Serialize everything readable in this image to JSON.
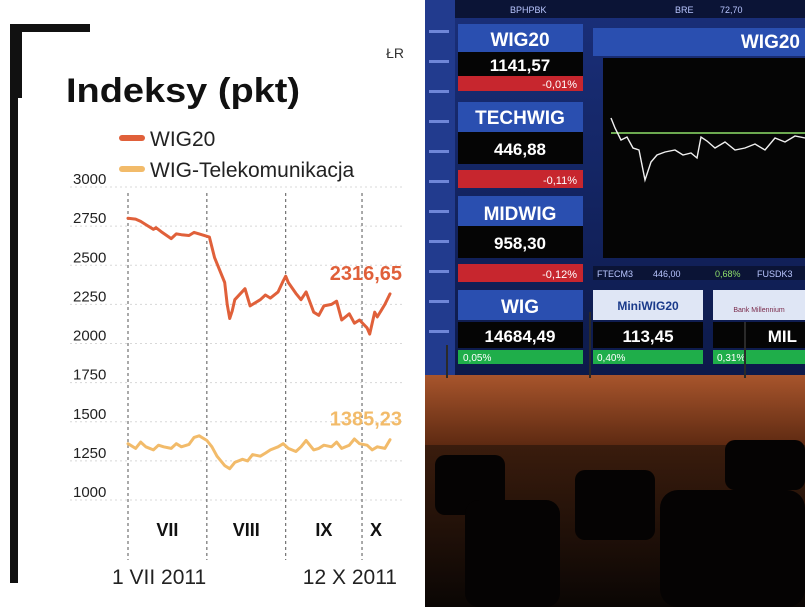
{
  "source_tag": "ŁR",
  "colors": {
    "wig20": "#e0603a",
    "telecom": "#f2bb6a",
    "text": "#222222",
    "grid": "#d8d8d8",
    "photo_panel_blue": "#2a4fb0",
    "photo_up_green": "#1fae4a",
    "photo_down_red": "#c7262e",
    "photo_index_line": "#f0f0f0",
    "photo_reference_line": "#8fe06a"
  },
  "chart_data": {
    "type": "line",
    "title": "Indeksy (pkt)",
    "xlabel": "",
    "ylabel": "",
    "ylim": [
      1000,
      3000
    ],
    "yticks": [
      3000,
      2750,
      2500,
      2250,
      2000,
      1750,
      1500,
      1250,
      1000
    ],
    "grid": "horizontal dotted lines, vertical dashed month separators",
    "legend_position": "top-left",
    "x_start_label": "1 VII 2011",
    "x_end_label": "12 X 2011",
    "months": [
      {
        "label": "VII",
        "start": "2011-07-01"
      },
      {
        "label": "VIII",
        "start": "2011-08-01"
      },
      {
        "label": "IX",
        "start": "2011-09-01"
      },
      {
        "label": "X",
        "start": "2011-10-01"
      }
    ],
    "series": [
      {
        "name": "WIG20",
        "color": "#e0603a",
        "last_value_label": "2316,65",
        "points": [
          [
            "2011-07-01",
            2800
          ],
          [
            "2011-07-04",
            2795
          ],
          [
            "2011-07-06",
            2780
          ],
          [
            "2011-07-08",
            2760
          ],
          [
            "2011-07-11",
            2730
          ],
          [
            "2011-07-12",
            2740
          ],
          [
            "2011-07-14",
            2715
          ],
          [
            "2011-07-18",
            2670
          ],
          [
            "2011-07-20",
            2700
          ],
          [
            "2011-07-22",
            2695
          ],
          [
            "2011-07-25",
            2690
          ],
          [
            "2011-07-27",
            2710
          ],
          [
            "2011-07-29",
            2700
          ],
          [
            "2011-08-02",
            2680
          ],
          [
            "2011-08-04",
            2550
          ],
          [
            "2011-08-08",
            2390
          ],
          [
            "2011-08-09",
            2250
          ],
          [
            "2011-08-10",
            2160
          ],
          [
            "2011-08-11",
            2210
          ],
          [
            "2011-08-12",
            2280
          ],
          [
            "2011-08-16",
            2350
          ],
          [
            "2011-08-18",
            2240
          ],
          [
            "2011-08-22",
            2280
          ],
          [
            "2011-08-24",
            2310
          ],
          [
            "2011-08-26",
            2290
          ],
          [
            "2011-08-29",
            2330
          ],
          [
            "2011-08-31",
            2400
          ],
          [
            "2011-09-01",
            2430
          ],
          [
            "2011-09-02",
            2390
          ],
          [
            "2011-09-05",
            2320
          ],
          [
            "2011-09-07",
            2280
          ],
          [
            "2011-09-09",
            2330
          ],
          [
            "2011-09-12",
            2200
          ],
          [
            "2011-09-14",
            2180
          ],
          [
            "2011-09-16",
            2240
          ],
          [
            "2011-09-19",
            2250
          ],
          [
            "2011-09-21",
            2270
          ],
          [
            "2011-09-23",
            2150
          ],
          [
            "2011-09-26",
            2190
          ],
          [
            "2011-09-28",
            2130
          ],
          [
            "2011-09-30",
            2150
          ],
          [
            "2011-10-03",
            2100
          ],
          [
            "2011-10-04",
            2060
          ],
          [
            "2011-10-06",
            2200
          ],
          [
            "2011-10-07",
            2170
          ],
          [
            "2011-10-10",
            2250
          ],
          [
            "2011-10-12",
            2316.65
          ]
        ]
      },
      {
        "name": "WIG-Telekomunikacja",
        "color": "#f2bb6a",
        "last_value_label": "1385,23",
        "points": [
          [
            "2011-07-01",
            1360
          ],
          [
            "2011-07-04",
            1330
          ],
          [
            "2011-07-06",
            1370
          ],
          [
            "2011-07-08",
            1340
          ],
          [
            "2011-07-11",
            1320
          ],
          [
            "2011-07-13",
            1350
          ],
          [
            "2011-07-15",
            1340
          ],
          [
            "2011-07-18",
            1330
          ],
          [
            "2011-07-20",
            1360
          ],
          [
            "2011-07-22",
            1340
          ],
          [
            "2011-07-25",
            1355
          ],
          [
            "2011-07-27",
            1400
          ],
          [
            "2011-07-29",
            1410
          ],
          [
            "2011-08-01",
            1380
          ],
          [
            "2011-08-03",
            1340
          ],
          [
            "2011-08-05",
            1280
          ],
          [
            "2011-08-08",
            1220
          ],
          [
            "2011-08-10",
            1200
          ],
          [
            "2011-08-12",
            1240
          ],
          [
            "2011-08-15",
            1260
          ],
          [
            "2011-08-17",
            1250
          ],
          [
            "2011-08-19",
            1290
          ],
          [
            "2011-08-22",
            1280
          ],
          [
            "2011-08-24",
            1300
          ],
          [
            "2011-08-26",
            1320
          ],
          [
            "2011-08-29",
            1340
          ],
          [
            "2011-08-31",
            1360
          ],
          [
            "2011-09-02",
            1330
          ],
          [
            "2011-09-05",
            1310
          ],
          [
            "2011-09-07",
            1340
          ],
          [
            "2011-09-09",
            1380
          ],
          [
            "2011-09-12",
            1320
          ],
          [
            "2011-09-14",
            1330
          ],
          [
            "2011-09-16",
            1350
          ],
          [
            "2011-09-19",
            1340
          ],
          [
            "2011-09-21",
            1370
          ],
          [
            "2011-09-23",
            1330
          ],
          [
            "2011-09-26",
            1350
          ],
          [
            "2011-09-28",
            1390
          ],
          [
            "2011-09-30",
            1360
          ],
          [
            "2011-10-03",
            1350
          ],
          [
            "2011-10-05",
            1320
          ],
          [
            "2011-10-07",
            1340
          ],
          [
            "2011-10-10",
            1330
          ],
          [
            "2011-10-12",
            1385.23
          ]
        ]
      }
    ]
  },
  "photo": {
    "board_header": {
      "left": "BPHPBK",
      "middle": "BRE",
      "right": "72,70"
    },
    "tiles": [
      {
        "name": "WIG20",
        "value": "1141,57",
        "change": "-0,01%",
        "trend": "down"
      },
      {
        "name": "TECHWIG",
        "value": "446,88",
        "change": "-0,11%",
        "trend": "down"
      },
      {
        "name": "MIDWIG",
        "value": "958,30",
        "change": "-0,12%",
        "trend": "down"
      }
    ],
    "bottom_tiles": [
      {
        "name": "WIG",
        "value": "14684,49",
        "change": "0,05%",
        "trend": "up"
      },
      {
        "name": "MiniWIG20",
        "value": "113,45",
        "change": "0,40%",
        "trend": "up"
      },
      {
        "name": "Bank Millennium",
        "value": "MIL",
        "change": "0,31%",
        "trend": "up"
      }
    ],
    "big_chart_title": "WIG20",
    "ticker_strip": [
      "FTECM3",
      "446,00",
      "0,68%",
      "FUSDK3"
    ]
  }
}
